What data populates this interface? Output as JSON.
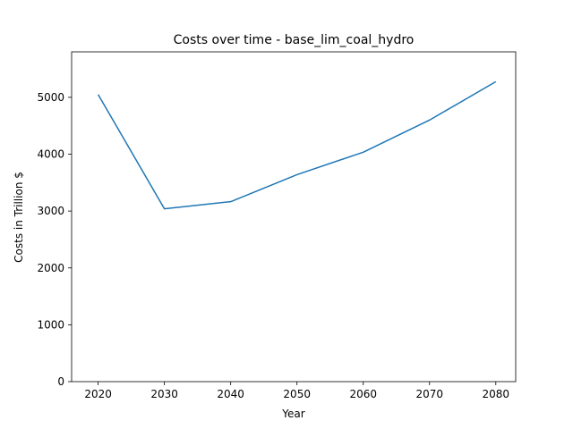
{
  "chart_data": {
    "type": "line",
    "title": "Costs over time - base_lim_coal_hydro",
    "xlabel": "Year",
    "ylabel": "Costs in Trillion $",
    "x": [
      2020,
      2030,
      2040,
      2050,
      2060,
      2070,
      2080
    ],
    "series": [
      {
        "values": [
          5050,
          3040,
          3165,
          3640,
          4035,
          4600,
          5275
        ],
        "color": "#1f77b4"
      }
    ],
    "xlim": [
      2016,
      2083
    ],
    "ylim": [
      0,
      5800
    ],
    "xticks": [
      "2020",
      "2030",
      "2040",
      "2050",
      "2060",
      "2070",
      "2080"
    ],
    "yticks": [
      "0",
      "1000",
      "2000",
      "3000",
      "4000",
      "5000"
    ],
    "grid": false,
    "legend": "none"
  }
}
